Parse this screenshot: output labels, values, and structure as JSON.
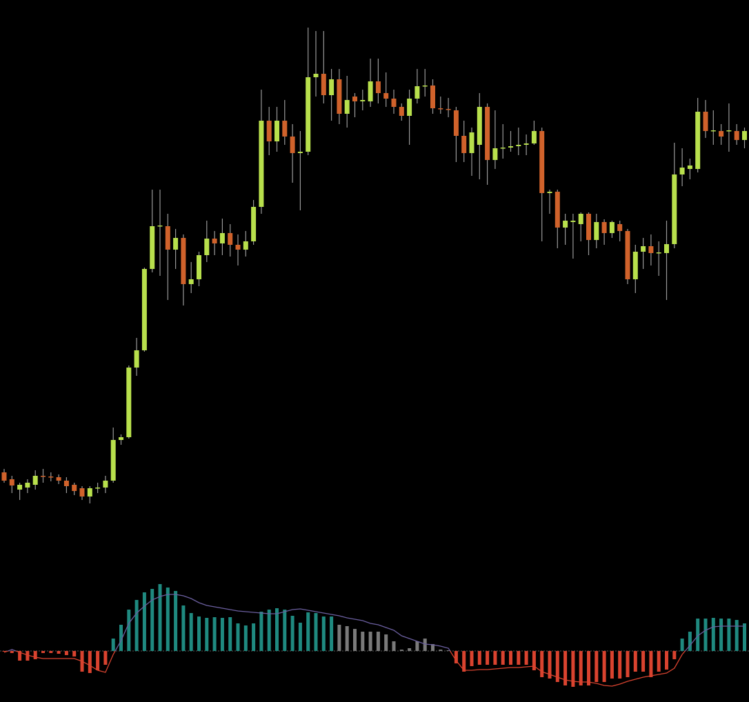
{
  "chart_data": [
    {
      "type": "candlestick",
      "up_color": "#b8e04c",
      "down_color": "#d0622b",
      "ylim": [
        0,
        1000
      ],
      "open": [
        315,
        305,
        290,
        293,
        297,
        310,
        309,
        308,
        303,
        297,
        292,
        280,
        292,
        293,
        303,
        362,
        366,
        467,
        492,
        610,
        672,
        672,
        638,
        655,
        588,
        595,
        630,
        654,
        647,
        662,
        645,
        638,
        650,
        700,
        825,
        795,
        825,
        802,
        778,
        780,
        888,
        893,
        862,
        885,
        835,
        860,
        853,
        853,
        882,
        865,
        857,
        845,
        832,
        857,
        875,
        876,
        843,
        842,
        840,
        803,
        778,
        790,
        845,
        768,
        785,
        786,
        788,
        790,
        792,
        810,
        720,
        722,
        670,
        678,
        675,
        690,
        652,
        678,
        662,
        675,
        665,
        595,
        635,
        643,
        633,
        633,
        646,
        747,
        755,
        755,
        838,
        810,
        810,
        810,
        810,
        797
      ],
      "high": [
        320,
        310,
        300,
        305,
        318,
        320,
        315,
        312,
        308,
        300,
        295,
        295,
        300,
        310,
        380,
        370,
        470,
        510,
        612,
        725,
        725,
        690,
        668,
        660,
        620,
        635,
        680,
        665,
        683,
        675,
        660,
        665,
        710,
        870,
        845,
        845,
        855,
        820,
        810,
        960,
        955,
        955,
        900,
        900,
        890,
        865,
        870,
        915,
        915,
        895,
        870,
        850,
        870,
        900,
        900,
        885,
        860,
        858,
        845,
        825,
        815,
        865,
        850,
        840,
        820,
        810,
        815,
        805,
        825,
        815,
        725,
        725,
        690,
        690,
        692,
        692,
        690,
        682,
        680,
        680,
        668,
        645,
        655,
        660,
        650,
        680,
        793,
        785,
        770,
        858,
        855,
        840,
        820,
        850,
        820,
        815
      ],
      "low": [
        300,
        285,
        275,
        285,
        290,
        300,
        302,
        298,
        285,
        282,
        275,
        270,
        285,
        285,
        300,
        355,
        364,
        455,
        490,
        605,
        600,
        565,
        610,
        557,
        575,
        585,
        620,
        630,
        630,
        628,
        615,
        628,
        645,
        690,
        775,
        780,
        790,
        735,
        695,
        775,
        860,
        850,
        825,
        820,
        815,
        830,
        840,
        845,
        850,
        845,
        835,
        825,
        790,
        850,
        860,
        835,
        835,
        830,
        765,
        765,
        745,
        740,
        732,
        755,
        770,
        780,
        775,
        775,
        790,
        650,
        690,
        640,
        645,
        625,
        650,
        630,
        640,
        645,
        655,
        650,
        588,
        575,
        610,
        615,
        600,
        565,
        640,
        730,
        740,
        750,
        800,
        790,
        790,
        780,
        790,
        785
      ],
      "close": [
        303,
        296,
        297,
        300,
        310,
        309,
        308,
        303,
        295,
        288,
        280,
        292,
        293,
        303,
        362,
        366,
        467,
        492,
        610,
        672,
        673,
        638,
        655,
        588,
        595,
        630,
        654,
        647,
        662,
        645,
        638,
        650,
        700,
        825,
        795,
        825,
        802,
        778,
        780,
        888,
        893,
        862,
        885,
        835,
        855,
        853,
        855,
        882,
        865,
        857,
        845,
        832,
        857,
        875,
        876,
        843,
        842,
        841,
        803,
        778,
        808,
        845,
        768,
        785,
        786,
        788,
        790,
        792,
        810,
        720,
        722,
        670,
        680,
        680,
        690,
        652,
        678,
        662,
        678,
        665,
        595,
        635,
        643,
        633,
        634,
        646,
        747,
        757,
        760,
        838,
        810,
        811,
        802,
        811,
        797,
        810
      ]
    },
    {
      "type": "bar",
      "ylim": [
        -74,
        114
      ],
      "values": [
        -1,
        -3,
        -14,
        -14,
        -12,
        -3,
        -3,
        -4,
        -6,
        -8,
        -30,
        -32,
        -28,
        -20,
        18,
        38,
        60,
        74,
        85,
        90,
        97,
        92,
        87,
        66,
        55,
        50,
        48,
        49,
        48,
        49,
        40,
        37,
        40,
        57,
        60,
        62,
        60,
        51,
        41,
        56,
        55,
        50,
        50,
        38,
        36,
        32,
        28,
        28,
        28,
        24,
        14,
        2,
        4,
        14,
        18,
        10,
        2,
        1,
        -18,
        -30,
        -22,
        -20,
        -20,
        -20,
        -20,
        -20,
        -20,
        -20,
        -28,
        -38,
        -40,
        -45,
        -50,
        -52,
        -50,
        -50,
        -45,
        -45,
        -40,
        -40,
        -38,
        -30,
        -30,
        -38,
        -30,
        -27,
        -12,
        18,
        28,
        47,
        47,
        48,
        47,
        47,
        45,
        40
      ],
      "colors": [
        "#d9432f",
        "#d9432f",
        "#d9432f",
        "#d9432f",
        "#d9432f",
        "#d9432f",
        "#d9432f",
        "#d9432f",
        "#d9432f",
        "#d9432f",
        "#d9432f",
        "#d9432f",
        "#d9432f",
        "#d9432f",
        "#1f8a80",
        "#1f8a80",
        "#1f8a80",
        "#1f8a80",
        "#1f8a80",
        "#1f8a80",
        "#1f8a80",
        "#1f8a80",
        "#1f8a80",
        "#1f8a80",
        "#1f8a80",
        "#1f8a80",
        "#1f8a80",
        "#1f8a80",
        "#1f8a80",
        "#1f8a80",
        "#1f8a80",
        "#1f8a80",
        "#1f8a80",
        "#1f8a80",
        "#1f8a80",
        "#1f8a80",
        "#1f8a80",
        "#1f8a80",
        "#1f8a80",
        "#1f8a80",
        "#1f8a80",
        "#1f8a80",
        "#1f8a80",
        "#7a7a7a",
        "#7a7a7a",
        "#7a7a7a",
        "#7a7a7a",
        "#7a7a7a",
        "#7a7a7a",
        "#7a7a7a",
        "#7a7a7a",
        "#7a7a7a",
        "#7a7a7a",
        "#7a7a7a",
        "#7a7a7a",
        "#7a7a7a",
        "#7a7a7a",
        "#7a7a7a",
        "#d9432f",
        "#d9432f",
        "#d9432f",
        "#d9432f",
        "#d9432f",
        "#d9432f",
        "#d9432f",
        "#d9432f",
        "#d9432f",
        "#d9432f",
        "#d9432f",
        "#d9432f",
        "#d9432f",
        "#d9432f",
        "#d9432f",
        "#d9432f",
        "#d9432f",
        "#d9432f",
        "#d9432f",
        "#d9432f",
        "#d9432f",
        "#d9432f",
        "#d9432f",
        "#d9432f",
        "#d9432f",
        "#d9432f",
        "#d9432f",
        "#d9432f",
        "#d9432f",
        "#1f8a80",
        "#1f8a80",
        "#1f8a80",
        "#1f8a80",
        "#1f8a80",
        "#1f8a80",
        "#1f8a80",
        "#1f8a80",
        "#1f8a80"
      ],
      "line": {
        "values": [
          -2,
          2,
          -2,
          -6,
          -9,
          -11,
          -11,
          -11,
          -11,
          -11,
          -15,
          -21,
          -28,
          -31,
          -5,
          15,
          40,
          55,
          65,
          74,
          79,
          82,
          82,
          80,
          76,
          70,
          66,
          64,
          62,
          60,
          58,
          57,
          56,
          55,
          54,
          54,
          57,
          60,
          61,
          59,
          57,
          55,
          53,
          51,
          48,
          46,
          44,
          40,
          38,
          34,
          30,
          22,
          18,
          14,
          10,
          9,
          7,
          4,
          -14,
          -28,
          -28,
          -27,
          -27,
          -26,
          -25,
          -24,
          -24,
          -23,
          -22,
          -30,
          -34,
          -38,
          -42,
          -44,
          -45,
          -45,
          -47,
          -50,
          -51,
          -48,
          -44,
          -41,
          -38,
          -36,
          -34,
          -32,
          -25,
          -5,
          8,
          22,
          30,
          35,
          36,
          36,
          36,
          36
        ],
        "color_above": "#6b5fa0",
        "color_below": "#d9432f"
      }
    }
  ]
}
